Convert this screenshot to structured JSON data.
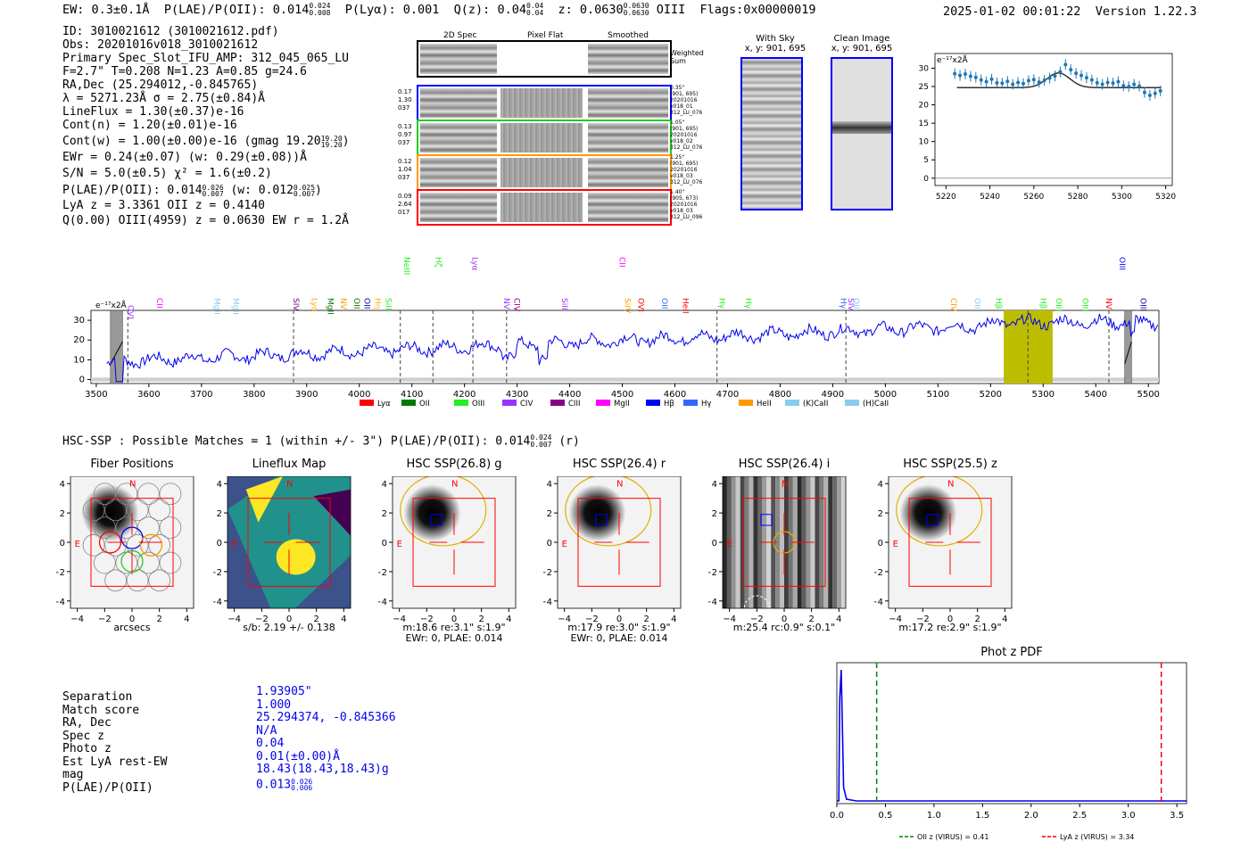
{
  "header": {
    "ew": "EW: 0.3±0.1Å",
    "plae": "P(LAE)/P(OII): 0.014",
    "plae_up": "0.024",
    "plae_lo": "0.008",
    "plya": "P(Lyα): 0.001",
    "qz": "Q(z): 0.04",
    "qz_up": "0.04",
    "qz_lo": "0.04",
    "z": "z: 0.0630",
    "z_up": "0.0630",
    "z_lo": "0.0630",
    "line": "OIII",
    "flags": "Flags:0x00000019",
    "datetime": "2025-01-02 00:01:22",
    "version": "Version 1.22.3"
  },
  "info": {
    "id": "ID: 3010021612 (3010021612.pdf)",
    "obs": "Obs: 20201016v018_3010021612",
    "primary": "Primary Spec_Slot_IFU_AMP: 312_045_065_LU",
    "fit": "F=2.7\"  T=0.208  N=1.23  A=0.85  g=24.6",
    "radec": "RA,Dec (25.294012,-0.845765)",
    "lambda": "λ = 5271.23Å  σ = 2.75(±0.84)Å",
    "lineflux": "LineFlux = 1.30(±0.37)e-16",
    "contn": "Cont(n) = 1.20(±0.01)e-16",
    "contw": "Cont(w) = 1.00(±0.00)e-16 (gmag 19.20",
    "contw_up": "19.20",
    "contw_lo": "19.20",
    "ewr": "EWr = 0.24(±0.07) (w: 0.29(±0.08))Å",
    "sn": "S/N = 5.0(±0.5)  χ² = 1.6(±0.2)",
    "plae2": "P(LAE)/P(OII): 0.014",
    "plae2_up": "0.026",
    "plae2_lo": "0.007",
    "plae2_w": "(w: 0.012",
    "plae2_w_up": "0.025",
    "plae2_w_lo": "0.007",
    "lya": "LyA z = 3.3361  OII z = 0.4140",
    "q": "Q(0.00) OIII(4959) z = 0.0630  EW r = 1.2Å"
  },
  "cutouts": {
    "col_titles": [
      "2D Spec",
      "Pixel Flat",
      "Smoothed"
    ],
    "weighted": "Weighted Sum",
    "rows": [
      {
        "left": [
          "0.17",
          "1.30",
          "037"
        ],
        "right": [
          "0.35\"",
          "(901, 695)",
          "20201016",
          "v018_01",
          "312_LU_076"
        ],
        "color": "#0000ff"
      },
      {
        "left": [
          "0.13",
          "0.97",
          "037"
        ],
        "right": [
          "1.05\"",
          "(901, 695)",
          "20201016",
          "v018_02",
          "312_LU_076"
        ],
        "color": "#22cc22"
      },
      {
        "left": [
          "0.12",
          "1.04",
          "037"
        ],
        "right": [
          "1.25\"",
          "(901, 695)",
          "20201016",
          "v018_03",
          "312_LU_076"
        ],
        "color": "#ff9900"
      },
      {
        "left": [
          "0.09",
          "2.64",
          "017"
        ],
        "right": [
          "1.40\"",
          "(905, 673)",
          "20201016",
          "v018_03",
          "312_LU_096"
        ],
        "color": "#ff0000"
      }
    ]
  },
  "sky": {
    "title": "With Sky",
    "coords": "x, y: 901, 695"
  },
  "clean": {
    "title": "Clean Image",
    "coords": "x, y: 901, 695"
  },
  "zoom_plot": {
    "unit": "e⁻¹⁷x2Å",
    "xticks": [
      "5220",
      "5240",
      "5260",
      "5280",
      "5300",
      "5320"
    ],
    "yticks": [
      "30",
      "25",
      "20",
      "15",
      "10",
      "5",
      "0"
    ]
  },
  "spectrum": {
    "unit": "e⁻¹⁷x2Å",
    "xticks": [
      "3500",
      "3600",
      "3700",
      "3800",
      "3900",
      "4000",
      "4100",
      "4200",
      "4300",
      "4400",
      "4500",
      "4600",
      "4700",
      "4800",
      "4900",
      "5000",
      "5100",
      "5200",
      "5300",
      "5400",
      "5500"
    ],
    "yticks": [
      "30",
      "20",
      "10",
      "0"
    ],
    "legend": [
      {
        "name": "Lyα",
        "color": "#ff0000"
      },
      {
        "name": "OII",
        "color": "#007700"
      },
      {
        "name": "OIII",
        "color": "#22ee22"
      },
      {
        "name": "CIV",
        "color": "#9933ff"
      },
      {
        "name": "CIII",
        "color": "#880088"
      },
      {
        "name": "MgII",
        "color": "#ff00ff"
      },
      {
        "name": "Hβ",
        "color": "#0000ff"
      },
      {
        "name": "Hγ",
        "color": "#3366ff"
      },
      {
        "name": "HeII",
        "color": "#ff9900"
      },
      {
        "name": "(K)CaII",
        "color": "#88ccee"
      },
      {
        "name": "(H)CaII",
        "color": "#88ccee"
      }
    ],
    "line_labels": [
      {
        "t": "OVI",
        "c": "#9933ff"
      },
      {
        "t": "CII",
        "c": "#ff00ff"
      },
      {
        "t": "MgII",
        "c": "#88ccee"
      },
      {
        "t": "MgII",
        "c": "#88ccee"
      },
      {
        "t": "SIV",
        "c": "#880088"
      },
      {
        "t": "Lyα",
        "c": "#ffaa00"
      },
      {
        "t": "MgII",
        "c": "#007700"
      },
      {
        "t": "NV",
        "c": "#ff9900"
      },
      {
        "t": "OII",
        "c": "#007700"
      },
      {
        "t": "OII",
        "c": "#000099"
      },
      {
        "t": "Hη",
        "c": "#ffaa00"
      },
      {
        "t": "SiII",
        "c": "#22ee22"
      },
      {
        "t": "NeIII",
        "c": "#22ee22"
      },
      {
        "t": "Hζ",
        "c": "#22ee22"
      },
      {
        "t": "Lyα",
        "c": "#9933ff"
      },
      {
        "t": "NV",
        "c": "#9933ff"
      },
      {
        "t": "CIV",
        "c": "#880088"
      },
      {
        "t": "SiII",
        "c": "#9933ff"
      },
      {
        "t": "CII",
        "c": "#ff00ff"
      },
      {
        "t": "SiIV",
        "c": "#ff9900"
      },
      {
        "t": "OVI",
        "c": "#ff0000"
      },
      {
        "t": "OII",
        "c": "#3366ff"
      },
      {
        "t": "HeII",
        "c": "#ff0000"
      },
      {
        "t": "Hγ",
        "c": "#22ee22"
      },
      {
        "t": "Hγ",
        "c": "#22ee22"
      },
      {
        "t": "Hγ",
        "c": "#3366ff"
      },
      {
        "t": "SIV",
        "c": "#9933ff"
      },
      {
        "t": "OII",
        "c": "#88ccee"
      },
      {
        "t": "CIV",
        "c": "#ff9900"
      },
      {
        "t": "OII",
        "c": "#88ccee"
      },
      {
        "t": "Hβ",
        "c": "#22ee22"
      },
      {
        "t": "Hβ",
        "c": "#22ee22"
      },
      {
        "t": "OIII",
        "c": "#22ee22"
      },
      {
        "t": "OIII",
        "c": "#22ee22"
      },
      {
        "t": "NV",
        "c": "#ff0000"
      },
      {
        "t": "OIII",
        "c": "#0000ff"
      },
      {
        "t": "OIII",
        "c": "#0000aa"
      },
      {
        "t": "SiII",
        "c": "#ff0000"
      }
    ]
  },
  "hsc": {
    "summary": "HSC-SSP : Possible Matches = 1 (within +/- 3\")  P(LAE)/P(OII): 0.014",
    "summary_up": "0.024",
    "summary_lo": "0.007",
    "summary_band": "(r)"
  },
  "panels": [
    {
      "title": "Fiber Positions",
      "cap1": "arcsecs",
      "cap2": ""
    },
    {
      "title": "Lineflux Map",
      "cap1": "s/b: 2.19 +/- 0.138",
      "cap2": ""
    },
    {
      "title": "HSC SSP(26.8) g",
      "cap1": "m:18.6  re:3.1\"  s:1.9\"",
      "cap2": "EWr: 0, PLAE: 0.014"
    },
    {
      "title": "HSC SSP(26.4) r",
      "cap1": "m:17.9  re:3.0\"  s:1.9\"",
      "cap2": "EWr: 0, PLAE: 0.014"
    },
    {
      "title": "HSC SSP(26.4) i",
      "cap1": "m:25.4 rc:0.9\"  s:0.1\"",
      "cap2": ""
    },
    {
      "title": "HSC SSP(25.5) z",
      "cap1": "m:17.2  re:2.9\"  s:1.9\"",
      "cap2": ""
    }
  ],
  "axis_ticks": {
    "x": [
      "−4",
      "−2",
      "0",
      "2",
      "4"
    ],
    "y": [
      "4",
      "2",
      "0",
      "−2",
      "−4"
    ]
  },
  "compass": {
    "n": "N",
    "e": "E"
  },
  "match": {
    "labels": [
      "Separation",
      "Match score",
      "RA, Dec",
      "Spec z",
      "Photo z",
      "Est LyA rest-EW",
      "mag",
      "P(LAE)/P(OII)"
    ],
    "values": [
      "1.93905\"",
      "1.000",
      "25.294374, -0.845366",
      "N/A",
      "0.04",
      "0.01(±0.00)Å",
      "18.43(18.43,18.43)g",
      "0.013"
    ],
    "plae_up": "0.026",
    "plae_lo": "0.006"
  },
  "photz": {
    "title": "Phot z PDF",
    "xticks": [
      "0.0",
      "0.5",
      "1.0",
      "1.5",
      "2.0",
      "2.5",
      "3.0",
      "3.5"
    ],
    "oii": "OII z (VIRUS) = 0.41",
    "lya": "LyA z (VIRUS) = 3.34",
    "oii_z": 0.41,
    "lya_z": 3.34,
    "peak_z": 0.04
  }
}
